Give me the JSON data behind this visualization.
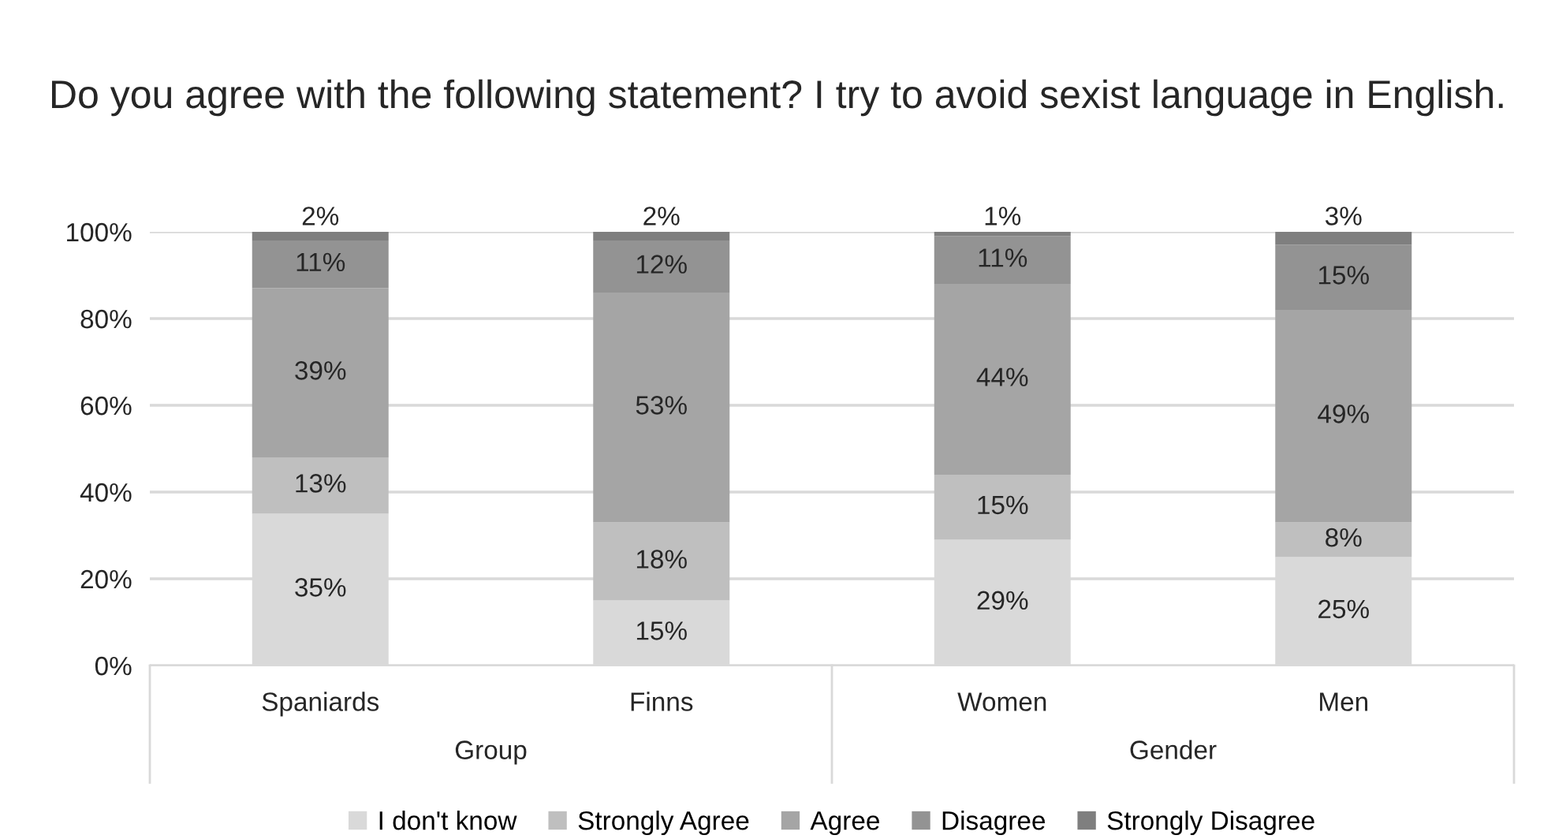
{
  "chart_data": {
    "type": "bar",
    "stacked": true,
    "title": "Do you agree with the following statement? I try to avoid sexist language in English.",
    "categories": [
      "Spaniards",
      "Finns",
      "Women",
      "Men"
    ],
    "series": [
      {
        "name": "I don't know",
        "color": "#d9d9d9",
        "values": [
          35,
          15,
          29,
          25
        ],
        "value_labels": [
          "35%",
          "15%",
          "29%",
          "25%"
        ]
      },
      {
        "name": "Strongly Agree",
        "color": "#bfbfbf",
        "values": [
          13,
          18,
          15,
          8
        ],
        "value_labels": [
          "13%",
          "18%",
          "15%",
          "8%"
        ]
      },
      {
        "name": "Agree",
        "color": "#a5a5a5",
        "values": [
          39,
          53,
          44,
          49
        ],
        "value_labels": [
          "39%",
          "53%",
          "44%",
          "49%"
        ]
      },
      {
        "name": "Disagree",
        "color": "#939393",
        "values": [
          11,
          12,
          11,
          15
        ],
        "value_labels": [
          "11%",
          "12%",
          "11%",
          "15%"
        ]
      },
      {
        "name": "Strongly Disagree",
        "color": "#7f7f7f",
        "values": [
          2,
          2,
          1,
          3
        ],
        "value_labels": [
          "2%",
          "2%",
          "1%",
          "3%"
        ]
      }
    ],
    "annotations": [
      "Group",
      "Gender"
    ],
    "ylim": [
      0,
      100
    ],
    "yticks": [
      {
        "value": 0,
        "label": "0%"
      },
      {
        "value": 20,
        "label": "20%"
      },
      {
        "value": 40,
        "label": "40%"
      },
      {
        "value": 60,
        "label": "60%"
      },
      {
        "value": 80,
        "label": "80%"
      },
      {
        "value": 100,
        "label": "100%"
      }
    ],
    "grid": "y",
    "legend": "bottom"
  }
}
